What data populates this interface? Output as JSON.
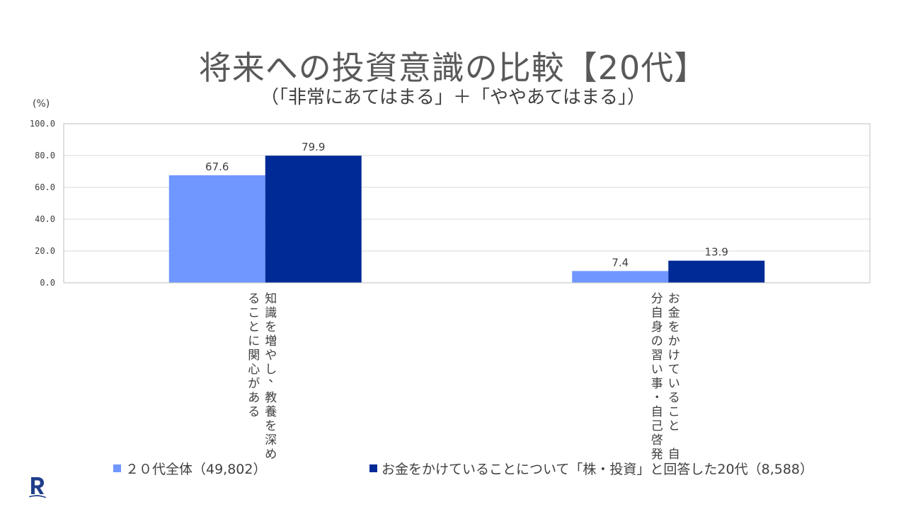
{
  "title": "将来への投資意識の比較【20代】",
  "subtitle": "（「非常にあてはまる」＋「ややあてはまる」）",
  "colors": {
    "series1": "#6f97ff",
    "series2": "#002a96",
    "grid": "#d9d9d9",
    "frame": "#bfbfbf",
    "logo": "#1f3e8a"
  },
  "logo_icon": "rakuten-r-icon",
  "chart_data": {
    "type": "bar",
    "unit_label": "(%)",
    "ylim": [
      0,
      100
    ],
    "yticks": [
      "0.0",
      "20.0",
      "40.0",
      "60.0",
      "80.0",
      "100.0"
    ],
    "grid": true,
    "legend_position": "bottom",
    "categories": [
      "知識を増やし、教養を深めることに関心がある",
      "お金をかけていること　自分自身の習い事・自己啓発"
    ],
    "category_lines": [
      [
        "知識を増やし、教養を深め",
        "ることに関心がある"
      ],
      [
        "お金をかけていること　自",
        "分自身の習い事・自己啓発"
      ]
    ],
    "series": [
      {
        "name": "２０代全体（49,802）",
        "values": [
          67.6,
          7.4
        ],
        "labels": [
          "67.6",
          "7.4"
        ]
      },
      {
        "name": "お金をかけていることについて「株・投資」と回答した20代（8,588）",
        "values": [
          79.9,
          13.9
        ],
        "labels": [
          "79.9",
          "13.9"
        ]
      }
    ]
  }
}
